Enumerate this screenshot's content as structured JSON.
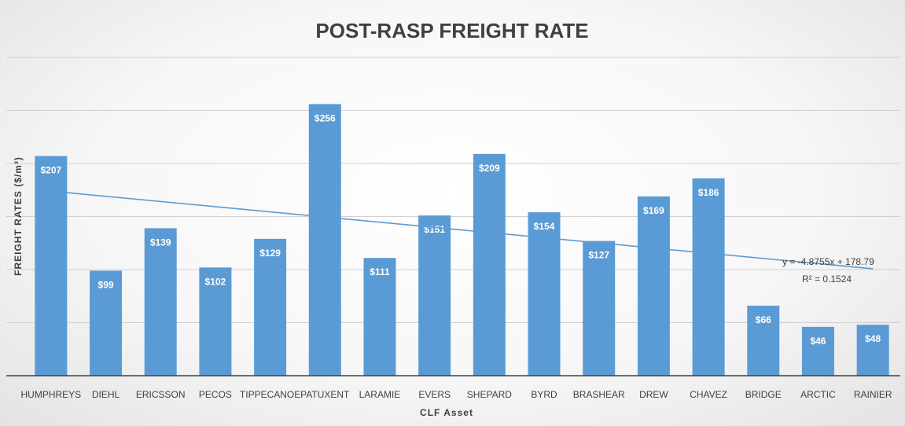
{
  "chart_data": {
    "type": "bar",
    "title": "POST-RASP FREIGHT RATE",
    "xlabel": "CLF Asset",
    "ylabel": "FREIGHT RATES ($/m³)",
    "categories": [
      "HUMPHREYS",
      "DIEHL",
      "ERICSSON",
      "PECOS",
      "TIPPECANOE",
      "PATUXENT",
      "LARAMIE",
      "EVERS",
      "SHEPARD",
      "BYRD",
      "BRASHEAR",
      "DREW",
      "CHAVEZ",
      "BRIDGE",
      "ARCTIC",
      "RAINIER"
    ],
    "values": [
      207,
      99,
      139,
      102,
      129,
      256,
      111,
      151,
      209,
      154,
      127,
      169,
      186,
      66,
      46,
      48
    ],
    "data_labels": [
      "$207",
      "$99",
      "$139",
      "$102",
      "$129",
      "$256",
      "$111",
      "$151",
      "$209",
      "$154",
      "$127",
      "$169",
      "$186",
      "$66",
      "$46",
      "$48"
    ],
    "ylim": [
      0,
      300
    ],
    "grid": true,
    "bar_color": "#5b9bd5",
    "trendline": {
      "type": "linear",
      "slope": -4.8755,
      "intercept": 178.79,
      "equation": "y = -4.8755x + 178.79",
      "r_squared": "R² = 0.1524",
      "color": "#5b9bd5"
    }
  }
}
